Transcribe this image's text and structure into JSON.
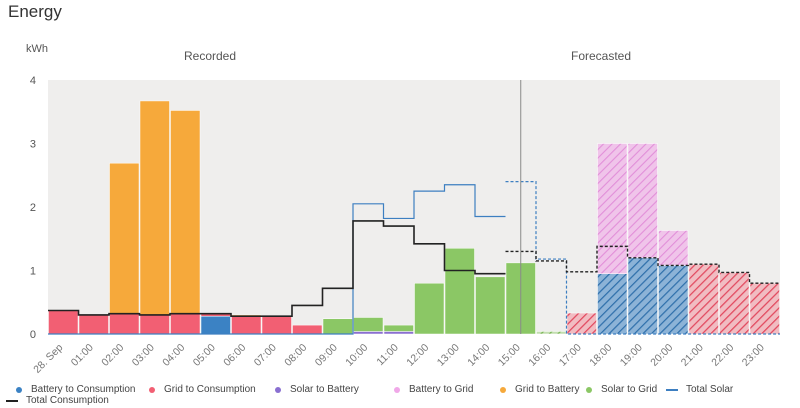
{
  "page": {
    "title": "Energy"
  },
  "chart_data": {
    "type": "bar",
    "ylabel": "kWh",
    "ylim": [
      0,
      4
    ],
    "yticks": [
      0,
      1,
      2,
      3,
      4
    ],
    "section_labels": {
      "recorded": "Recorded",
      "forecasted": "Forecasted"
    },
    "now_index": 15.5,
    "grid": false,
    "categories": [
      "28. Sep",
      "01:00",
      "02:00",
      "03:00",
      "04:00",
      "05:00",
      "06:00",
      "07:00",
      "08:00",
      "09:00",
      "10:00",
      "11:00",
      "12:00",
      "13:00",
      "14:00",
      "15:00",
      "16:00",
      "17:00",
      "18:00",
      "19:00",
      "20:00",
      "21:00",
      "22:00",
      "23:00"
    ],
    "series": [
      {
        "name": "Battery to Consumption",
        "key": "battery_to_consumption",
        "color": "#3b82c4",
        "values": [
          0,
          0,
          0,
          0,
          0,
          0.28,
          0,
          0,
          0,
          0,
          0,
          0,
          0,
          0,
          0,
          0,
          0,
          0,
          0.95,
          1.2,
          1.08,
          0,
          0,
          0
        ]
      },
      {
        "name": "Grid to Consumption",
        "key": "grid_to_consumption",
        "color": "#f25f73",
        "values": [
          0.37,
          0.3,
          0.32,
          0.3,
          0.32,
          0.04,
          0.28,
          0.28,
          0.14,
          0,
          0,
          0,
          0,
          0,
          0,
          0,
          0,
          0.33,
          0,
          0,
          0,
          1.1,
          0.97,
          0.8
        ]
      },
      {
        "name": "Solar to Battery",
        "key": "solar_to_battery",
        "color": "#8a6fd1",
        "values": [
          0,
          0,
          0,
          0,
          0,
          0,
          0,
          0,
          0,
          0,
          0.04,
          0.04,
          0,
          0,
          0,
          0,
          0,
          0,
          0,
          0,
          0,
          0,
          0,
          0
        ]
      },
      {
        "name": "Battery to Grid",
        "key": "battery_to_grid",
        "color": "#f0a8e8",
        "values": [
          0,
          0,
          0,
          0,
          0,
          0,
          0,
          0,
          0,
          0,
          0,
          0,
          0,
          0,
          0,
          0,
          0,
          0,
          2.05,
          1.8,
          0.55,
          0,
          0,
          0
        ]
      },
      {
        "name": "Grid to Battery",
        "key": "grid_to_battery",
        "color": "#f6a93b",
        "values": [
          0,
          0,
          2.37,
          3.37,
          3.2,
          0,
          0.02,
          0,
          0,
          0,
          0,
          0,
          0,
          0,
          0,
          0,
          0,
          0,
          0,
          0,
          0,
          0,
          0,
          0
        ]
      },
      {
        "name": "Solar to Grid",
        "key": "solar_to_grid",
        "color": "#8bc765",
        "values": [
          0,
          0,
          0,
          0,
          0,
          0,
          0,
          0,
          0,
          0.24,
          0.22,
          0.1,
          0.8,
          1.35,
          0.9,
          1.12,
          0.04,
          0,
          0,
          0,
          0,
          0,
          0,
          0
        ]
      }
    ],
    "lines": [
      {
        "name": "Total Solar",
        "key": "total_solar",
        "color": "#3d7fc1",
        "values": [
          0,
          0,
          0,
          0,
          0,
          0,
          0,
          0,
          0,
          0,
          2.05,
          1.82,
          2.25,
          2.35,
          1.85,
          2.4,
          1.18,
          0,
          0,
          0,
          0,
          0,
          0,
          0
        ]
      },
      {
        "name": "Total Consumption",
        "key": "total_consumption",
        "color": "#222222",
        "values": [
          0.37,
          0.3,
          0.32,
          0.3,
          0.32,
          0.32,
          0.28,
          0.28,
          0.45,
          0.72,
          1.78,
          1.7,
          1.42,
          1.0,
          0.95,
          1.3,
          1.15,
          0.98,
          1.38,
          1.2,
          1.08,
          1.1,
          0.97,
          0.8
        ]
      }
    ]
  }
}
